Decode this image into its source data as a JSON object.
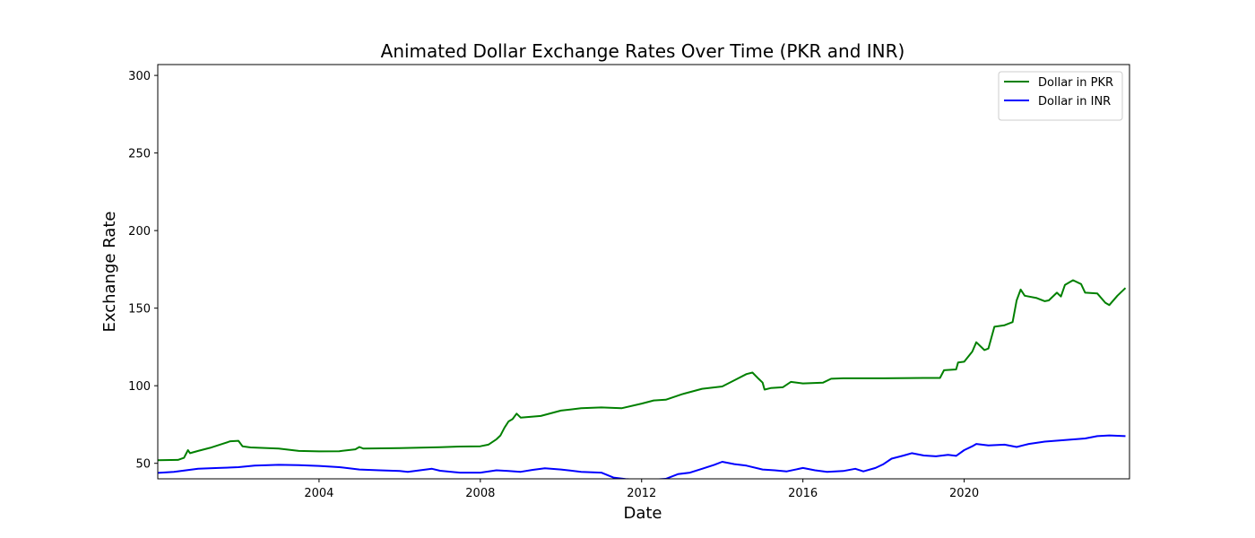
{
  "chart_data": {
    "type": "line",
    "title": "Animated Dollar Exchange Rates Over Time (PKR and INR)",
    "xlabel": "Date",
    "ylabel": "Exchange Rate",
    "xlim": [
      2000.0,
      2024.1
    ],
    "ylim": [
      40,
      307
    ],
    "x_ticks": [
      {
        "value": 2004,
        "label": "2004"
      },
      {
        "value": 2008,
        "label": "2008"
      },
      {
        "value": 2012,
        "label": "2012"
      },
      {
        "value": 2016,
        "label": "2016"
      },
      {
        "value": 2020,
        "label": "2020"
      }
    ],
    "y_ticks": [
      {
        "value": 50,
        "label": "50"
      },
      {
        "value": 100,
        "label": "100"
      },
      {
        "value": 150,
        "label": "150"
      },
      {
        "value": 200,
        "label": "200"
      },
      {
        "value": 250,
        "label": "250"
      },
      {
        "value": 300,
        "label": "300"
      }
    ],
    "grid": false,
    "legend_position": "top-right",
    "series": [
      {
        "name": "Dollar in PKR",
        "color": "#008000",
        "points": [
          [
            2000.0,
            52.0
          ],
          [
            2000.5,
            52.2
          ],
          [
            2000.65,
            53.5
          ],
          [
            2000.75,
            58.5
          ],
          [
            2000.8,
            56.5
          ],
          [
            2001.0,
            58.0
          ],
          [
            2001.3,
            60.0
          ],
          [
            2001.6,
            62.5
          ],
          [
            2001.8,
            64.2
          ],
          [
            2002.0,
            64.5
          ],
          [
            2002.1,
            61.0
          ],
          [
            2002.3,
            60.2
          ],
          [
            2003.0,
            59.5
          ],
          [
            2003.5,
            58.0
          ],
          [
            2004.0,
            57.7
          ],
          [
            2004.5,
            57.8
          ],
          [
            2004.9,
            59.0
          ],
          [
            2005.0,
            60.5
          ],
          [
            2005.1,
            59.5
          ],
          [
            2006.0,
            59.8
          ],
          [
            2007.0,
            60.4
          ],
          [
            2007.5,
            60.8
          ],
          [
            2008.0,
            61.0
          ],
          [
            2008.2,
            62.0
          ],
          [
            2008.4,
            65.5
          ],
          [
            2008.5,
            68.0
          ],
          [
            2008.6,
            73.0
          ],
          [
            2008.7,
            77.0
          ],
          [
            2008.8,
            78.5
          ],
          [
            2008.9,
            82.0
          ],
          [
            2009.0,
            79.5
          ],
          [
            2009.5,
            80.5
          ],
          [
            2010.0,
            84.0
          ],
          [
            2010.5,
            85.5
          ],
          [
            2011.0,
            86.0
          ],
          [
            2011.5,
            85.5
          ],
          [
            2012.0,
            88.5
          ],
          [
            2012.3,
            90.5
          ],
          [
            2012.6,
            91.0
          ],
          [
            2013.0,
            94.5
          ],
          [
            2013.5,
            98.0
          ],
          [
            2014.0,
            99.5
          ],
          [
            2014.3,
            103.5
          ],
          [
            2014.6,
            107.5
          ],
          [
            2014.75,
            108.5
          ],
          [
            2014.9,
            104.5
          ],
          [
            2015.0,
            102.0
          ],
          [
            2015.05,
            97.5
          ],
          [
            2015.2,
            98.5
          ],
          [
            2015.5,
            99.0
          ],
          [
            2015.7,
            102.5
          ],
          [
            2016.0,
            101.5
          ],
          [
            2016.5,
            102.0
          ],
          [
            2016.7,
            104.5
          ],
          [
            2017.0,
            104.8
          ],
          [
            2018.0,
            104.8
          ],
          [
            2019.0,
            105.0
          ],
          [
            2019.4,
            105.0
          ],
          [
            2019.5,
            110.0
          ],
          [
            2019.8,
            110.5
          ],
          [
            2019.85,
            115.0
          ],
          [
            2020.0,
            115.5
          ],
          [
            2020.2,
            122.0
          ],
          [
            2020.3,
            128.0
          ],
          [
            2020.5,
            123.0
          ],
          [
            2020.6,
            124.0
          ],
          [
            2020.75,
            138.0
          ],
          [
            2021.0,
            139.0
          ],
          [
            2021.2,
            141.0
          ],
          [
            2021.3,
            155.0
          ],
          [
            2021.4,
            162.0
          ],
          [
            2021.5,
            158.0
          ],
          [
            2021.8,
            156.5
          ],
          [
            2022.0,
            154.5
          ],
          [
            2022.1,
            155.0
          ],
          [
            2022.3,
            160.0
          ],
          [
            2022.4,
            157.5
          ],
          [
            2022.5,
            165.0
          ],
          [
            2022.7,
            168.0
          ],
          [
            2022.9,
            165.5
          ],
          [
            2023.0,
            160.0
          ],
          [
            2023.3,
            159.5
          ],
          [
            2023.5,
            153.5
          ],
          [
            2023.6,
            152.0
          ],
          [
            2023.8,
            158.0
          ],
          [
            2024.0,
            163.0
          ]
        ]
      },
      {
        "name": "Dollar in INR",
        "color": "#0000ff",
        "points": [
          [
            2000.0,
            43.8
          ],
          [
            2000.4,
            44.5
          ],
          [
            2000.7,
            45.5
          ],
          [
            2001.0,
            46.5
          ],
          [
            2001.5,
            47.0
          ],
          [
            2002.0,
            47.5
          ],
          [
            2002.4,
            48.5
          ],
          [
            2003.0,
            49.0
          ],
          [
            2003.5,
            48.8
          ],
          [
            2004.0,
            48.3
          ],
          [
            2004.5,
            47.5
          ],
          [
            2005.0,
            46.0
          ],
          [
            2005.5,
            45.5
          ],
          [
            2006.0,
            45.0
          ],
          [
            2006.2,
            44.5
          ],
          [
            2006.5,
            45.5
          ],
          [
            2006.8,
            46.5
          ],
          [
            2007.0,
            45.2
          ],
          [
            2007.5,
            44.0
          ],
          [
            2008.0,
            44.0
          ],
          [
            2008.4,
            45.5
          ],
          [
            2008.7,
            45.0
          ],
          [
            2009.0,
            44.5
          ],
          [
            2009.3,
            45.8
          ],
          [
            2009.6,
            46.8
          ],
          [
            2010.0,
            46.0
          ],
          [
            2010.5,
            44.5
          ],
          [
            2011.0,
            44.0
          ],
          [
            2011.3,
            40.8
          ],
          [
            2011.6,
            39.8
          ],
          [
            2012.0,
            39.3
          ],
          [
            2012.3,
            39.5
          ],
          [
            2012.6,
            40.0
          ],
          [
            2012.9,
            43.0
          ],
          [
            2013.2,
            44.0
          ],
          [
            2013.5,
            46.5
          ],
          [
            2013.8,
            49.0
          ],
          [
            2014.0,
            51.0
          ],
          [
            2014.3,
            49.5
          ],
          [
            2014.6,
            48.5
          ],
          [
            2015.0,
            46.0
          ],
          [
            2015.3,
            45.5
          ],
          [
            2015.6,
            44.8
          ],
          [
            2016.0,
            47.0
          ],
          [
            2016.3,
            45.5
          ],
          [
            2016.6,
            44.5
          ],
          [
            2017.0,
            45.0
          ],
          [
            2017.3,
            46.5
          ],
          [
            2017.5,
            44.8
          ],
          [
            2017.8,
            47.0
          ],
          [
            2018.0,
            49.5
          ],
          [
            2018.2,
            53.0
          ],
          [
            2018.5,
            55.0
          ],
          [
            2018.7,
            56.5
          ],
          [
            2019.0,
            55.0
          ],
          [
            2019.3,
            54.5
          ],
          [
            2019.6,
            55.5
          ],
          [
            2019.8,
            54.8
          ],
          [
            2020.0,
            58.5
          ],
          [
            2020.2,
            61.0
          ],
          [
            2020.3,
            62.5
          ],
          [
            2020.6,
            61.5
          ],
          [
            2021.0,
            62.0
          ],
          [
            2021.3,
            60.5
          ],
          [
            2021.6,
            62.5
          ],
          [
            2022.0,
            64.0
          ],
          [
            2022.5,
            65.0
          ],
          [
            2023.0,
            66.0
          ],
          [
            2023.3,
            67.5
          ],
          [
            2023.6,
            68.0
          ],
          [
            2024.0,
            67.5
          ]
        ]
      }
    ]
  }
}
